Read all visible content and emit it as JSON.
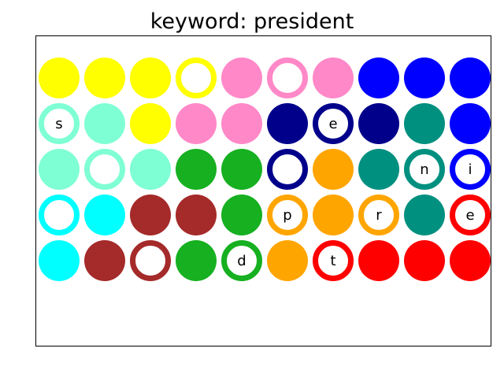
{
  "title": "keyword: president",
  "colors": {
    "yellow": "#ffff00",
    "pink": "#ff88c8",
    "blue": "#0000ff",
    "aquamarine": "#7fffd4",
    "navy": "#00008b",
    "teal": "#009080",
    "green": "#16b020",
    "orange": "#ffa500",
    "cyan": "#00ffff",
    "brown": "#a52a2a",
    "red": "#ff0000"
  },
  "grid": {
    "rows": 5,
    "cols": 10,
    "cells": [
      [
        {
          "color": "yellow",
          "ring": false,
          "letter": ""
        },
        {
          "color": "yellow",
          "ring": false,
          "letter": ""
        },
        {
          "color": "yellow",
          "ring": false,
          "letter": ""
        },
        {
          "color": "yellow",
          "ring": true,
          "letter": ""
        },
        {
          "color": "pink",
          "ring": false,
          "letter": ""
        },
        {
          "color": "pink",
          "ring": true,
          "letter": ""
        },
        {
          "color": "pink",
          "ring": false,
          "letter": ""
        },
        {
          "color": "blue",
          "ring": false,
          "letter": ""
        },
        {
          "color": "blue",
          "ring": false,
          "letter": ""
        },
        {
          "color": "blue",
          "ring": false,
          "letter": ""
        }
      ],
      [
        {
          "color": "aquamarine",
          "ring": true,
          "letter": "s"
        },
        {
          "color": "aquamarine",
          "ring": false,
          "letter": ""
        },
        {
          "color": "yellow",
          "ring": false,
          "letter": ""
        },
        {
          "color": "pink",
          "ring": false,
          "letter": ""
        },
        {
          "color": "pink",
          "ring": false,
          "letter": ""
        },
        {
          "color": "navy",
          "ring": false,
          "letter": ""
        },
        {
          "color": "navy",
          "ring": true,
          "letter": "e"
        },
        {
          "color": "navy",
          "ring": false,
          "letter": ""
        },
        {
          "color": "teal",
          "ring": false,
          "letter": ""
        },
        {
          "color": "blue",
          "ring": false,
          "letter": ""
        }
      ],
      [
        {
          "color": "aquamarine",
          "ring": false,
          "letter": ""
        },
        {
          "color": "aquamarine",
          "ring": true,
          "letter": ""
        },
        {
          "color": "aquamarine",
          "ring": false,
          "letter": ""
        },
        {
          "color": "green",
          "ring": false,
          "letter": ""
        },
        {
          "color": "green",
          "ring": false,
          "letter": ""
        },
        {
          "color": "navy",
          "ring": true,
          "letter": ""
        },
        {
          "color": "orange",
          "ring": false,
          "letter": ""
        },
        {
          "color": "teal",
          "ring": false,
          "letter": ""
        },
        {
          "color": "teal",
          "ring": true,
          "letter": "n"
        },
        {
          "color": "blue",
          "ring": true,
          "letter": "i"
        }
      ],
      [
        {
          "color": "cyan",
          "ring": true,
          "letter": ""
        },
        {
          "color": "cyan",
          "ring": false,
          "letter": ""
        },
        {
          "color": "brown",
          "ring": false,
          "letter": ""
        },
        {
          "color": "brown",
          "ring": false,
          "letter": ""
        },
        {
          "color": "green",
          "ring": false,
          "letter": ""
        },
        {
          "color": "orange",
          "ring": true,
          "letter": "p"
        },
        {
          "color": "orange",
          "ring": false,
          "letter": ""
        },
        {
          "color": "orange",
          "ring": true,
          "letter": "r"
        },
        {
          "color": "teal",
          "ring": false,
          "letter": ""
        },
        {
          "color": "red",
          "ring": true,
          "letter": "e"
        }
      ],
      [
        {
          "color": "cyan",
          "ring": false,
          "letter": ""
        },
        {
          "color": "brown",
          "ring": false,
          "letter": ""
        },
        {
          "color": "brown",
          "ring": true,
          "letter": ""
        },
        {
          "color": "green",
          "ring": false,
          "letter": ""
        },
        {
          "color": "green",
          "ring": true,
          "letter": "d"
        },
        {
          "color": "orange",
          "ring": false,
          "letter": ""
        },
        {
          "color": "red",
          "ring": true,
          "letter": "t"
        },
        {
          "color": "red",
          "ring": false,
          "letter": ""
        },
        {
          "color": "red",
          "ring": false,
          "letter": ""
        },
        {
          "color": "red",
          "ring": false,
          "letter": ""
        }
      ]
    ]
  }
}
